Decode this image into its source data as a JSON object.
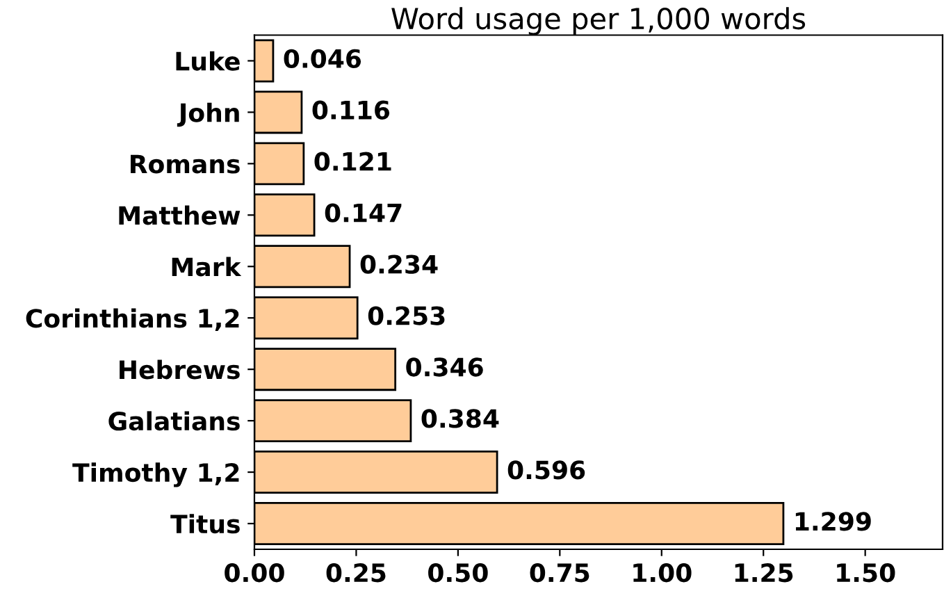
{
  "chart_data": {
    "type": "bar",
    "orientation": "horizontal",
    "title": "Word usage per 1,000 words",
    "categories": [
      "Luke",
      "John",
      "Romans",
      "Matthew",
      "Mark",
      "Corinthians 1,2",
      "Hebrews",
      "Galatians",
      "Timothy 1,2",
      "Titus"
    ],
    "values": [
      0.046,
      0.116,
      0.121,
      0.147,
      0.234,
      0.253,
      0.346,
      0.384,
      0.596,
      1.299
    ],
    "color": "#ffcc99",
    "data_labels": true,
    "grid": false,
    "legend": false,
    "xlim": [
      0,
      1.69
    ],
    "xticks": [
      {
        "value": 0,
        "label": "0.00"
      },
      {
        "value": 0.25,
        "label": "0.25"
      },
      {
        "value": 0.5,
        "label": "0.50"
      },
      {
        "value": 0.75,
        "label": "0.75"
      },
      {
        "value": 1,
        "label": "1.00"
      },
      {
        "value": 1.25,
        "label": "1.25"
      },
      {
        "value": 1.5,
        "label": "1.50"
      }
    ]
  }
}
